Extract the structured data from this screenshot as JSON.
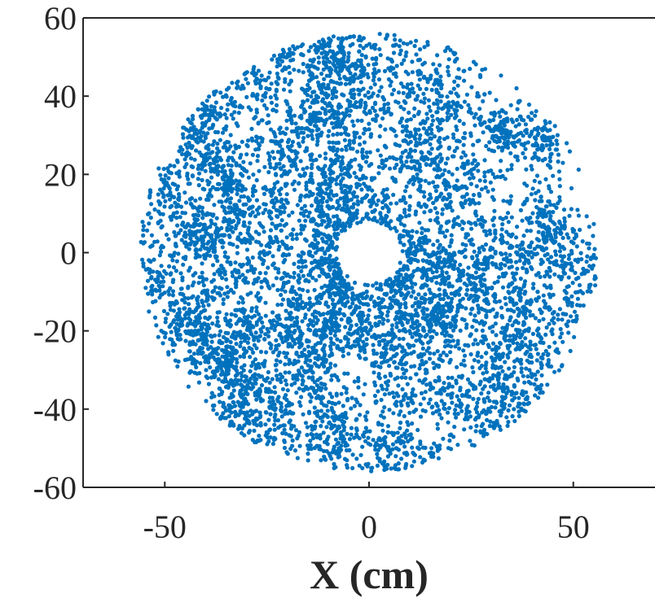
{
  "chart_data": {
    "type": "scatter",
    "title": "",
    "xlabel": "X (cm)",
    "ylabel": "",
    "xlim": [
      -70,
      70
    ],
    "ylim": [
      -60,
      60
    ],
    "xticks": [
      -50,
      0,
      50
    ],
    "yticks": [
      -60,
      -40,
      -20,
      0,
      20,
      40,
      60
    ],
    "xtick_labels": [
      "-50",
      "0",
      "50"
    ],
    "ytick_labels": [
      "-60",
      "-40",
      "-20",
      "0",
      "20",
      "40",
      "60"
    ],
    "grid": false,
    "legend": "none",
    "box": "left-bottom-top",
    "series": [
      {
        "color": "#0072BD",
        "marker": "dot",
        "distribution": {
          "shape": "annulus",
          "center": [
            0,
            0
          ],
          "inner_radius": 8,
          "outer_radius": 56,
          "approx_points": 7000
        }
      }
    ]
  }
}
